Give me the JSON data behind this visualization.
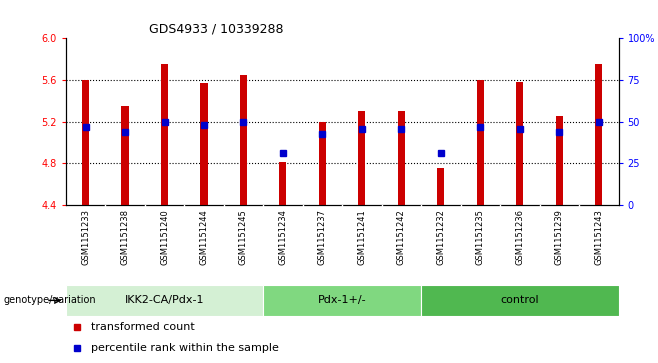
{
  "title": "GDS4933 / 10339288",
  "samples": [
    "GSM1151233",
    "GSM1151238",
    "GSM1151240",
    "GSM1151244",
    "GSM1151245",
    "GSM1151234",
    "GSM1151237",
    "GSM1151241",
    "GSM1151242",
    "GSM1151232",
    "GSM1151235",
    "GSM1151236",
    "GSM1151239",
    "GSM1151243"
  ],
  "bar_tops": [
    5.6,
    5.35,
    5.75,
    5.57,
    5.65,
    4.81,
    5.2,
    5.3,
    5.3,
    4.76,
    5.6,
    5.58,
    5.25,
    5.75
  ],
  "bar_bottom": 4.4,
  "percentile_values": [
    5.15,
    5.1,
    5.2,
    5.17,
    5.2,
    4.9,
    5.08,
    5.13,
    5.13,
    4.9,
    5.15,
    5.13,
    5.1,
    5.2
  ],
  "groups": [
    {
      "label": "IKK2-CA/Pdx-1",
      "start": 0,
      "end": 5,
      "color": "#d4f0d4"
    },
    {
      "label": "Pdx-1+/-",
      "start": 5,
      "end": 9,
      "color": "#80d880"
    },
    {
      "label": "control",
      "start": 9,
      "end": 14,
      "color": "#50b850"
    }
  ],
  "ylim_left": [
    4.4,
    6.0
  ],
  "ylim_right": [
    0,
    100
  ],
  "yticks_left": [
    4.4,
    4.8,
    5.2,
    5.6,
    6.0
  ],
  "yticks_right": [
    0,
    25,
    50,
    75,
    100
  ],
  "ytick_labels_right": [
    "0",
    "25",
    "50",
    "75",
    "100%"
  ],
  "bar_color": "#cc0000",
  "percentile_color": "#0000cc",
  "background_color": "#ffffff",
  "ticklabel_bg": "#d8d8d8",
  "legend_items": [
    {
      "color": "#cc0000",
      "label": "transformed count"
    },
    {
      "color": "#0000cc",
      "label": "percentile rank within the sample"
    }
  ],
  "genotype_label": "genotype/variation",
  "grid_yticks": [
    4.8,
    5.2,
    5.6
  ]
}
